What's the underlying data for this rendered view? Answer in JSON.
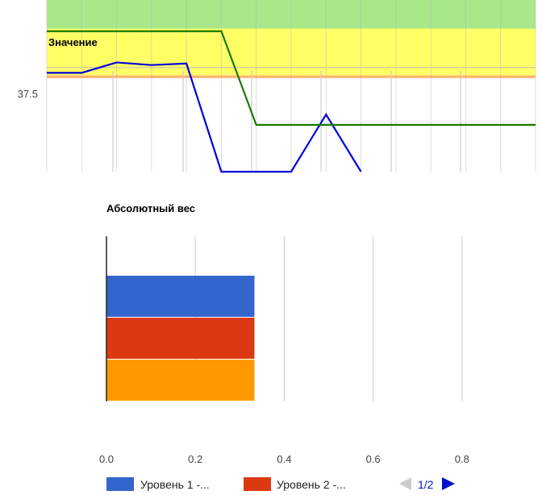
{
  "chart_data": [
    {
      "type": "line",
      "title": "Значение",
      "y_tick_label": "37.5",
      "y_tick_value": 37.5,
      "bands": [
        {
          "name": "green-zone",
          "color": "#a8e88a"
        },
        {
          "name": "yellow-zone",
          "color": "#ffff66"
        },
        {
          "name": "orange-zone",
          "color": "#ffb26e"
        }
      ],
      "series": [
        {
          "color": "#0000dd",
          "points": [
            [
              0,
              37.4
            ],
            [
              1,
              37.4
            ],
            [
              2,
              37.6
            ],
            [
              3,
              37.55
            ],
            [
              4,
              37.58
            ],
            [
              5,
              35.5
            ],
            [
              6,
              35.5
            ],
            [
              7,
              35.5
            ],
            [
              8,
              36.6
            ],
            [
              9,
              35.5
            ]
          ]
        },
        {
          "color": "#1a7a00",
          "points": [
            [
              0,
              38.2
            ],
            [
              1,
              38.2
            ],
            [
              2,
              38.2
            ],
            [
              3,
              38.2
            ],
            [
              4,
              38.2
            ],
            [
              5,
              38.2
            ],
            [
              6,
              36.4
            ],
            [
              7,
              36.4
            ],
            [
              8,
              36.4
            ],
            [
              9,
              36.4
            ],
            [
              10,
              36.4
            ],
            [
              11,
              36.4
            ],
            [
              12,
              36.4
            ],
            [
              13,
              36.4
            ],
            [
              14,
              36.4
            ]
          ]
        }
      ]
    },
    {
      "type": "bar",
      "orientation": "horizontal",
      "title": "Абсолютный вес",
      "xlim": [
        0,
        0.98
      ],
      "x_ticks": [
        "0.0",
        "0.2",
        "0.4",
        "0.6",
        "0.8"
      ],
      "x_tick_values": [
        0,
        0.2,
        0.4,
        0.6,
        0.8
      ],
      "series": [
        {
          "name": "Уровень 1 -...",
          "color": "#3366cc",
          "values": [
            0.333
          ]
        },
        {
          "name": "Уровень 2 -...",
          "color": "#dc3912",
          "values": [
            0.333
          ]
        },
        {
          "color": "#ff9900",
          "values": [
            0.333
          ]
        }
      ],
      "legend": {
        "position": "bottom",
        "pager_text": "1/2"
      }
    }
  ]
}
